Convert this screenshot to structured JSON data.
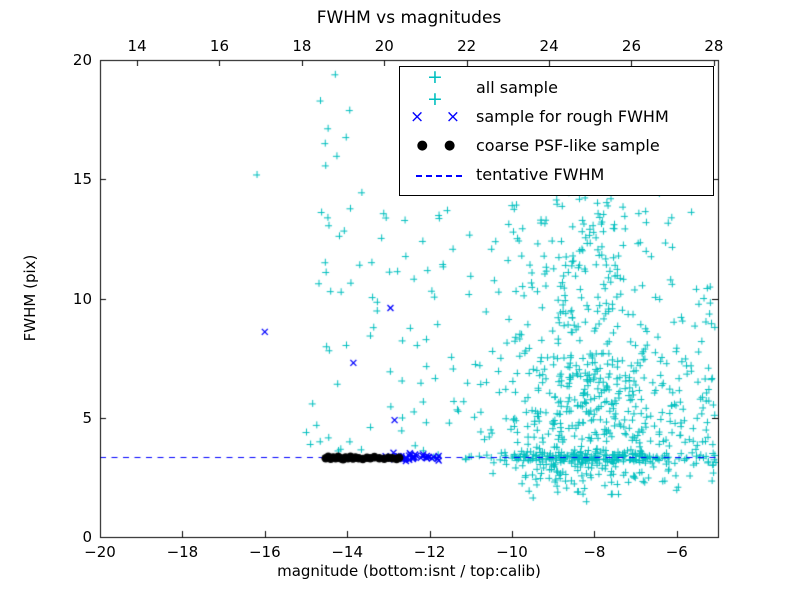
{
  "chart_data": {
    "type": "scatter",
    "title": "FWHM vs magnitudes",
    "xlabel": "magnitude (bottom:isnt / top:calib)",
    "ylabel": "FWHM (pix)",
    "xlim": [
      -20,
      -5
    ],
    "ylim": [
      0,
      20
    ],
    "top_xlim": [
      13.1,
      28.1
    ],
    "grid": false,
    "legend_position": "upper right",
    "x_ticks": [
      {
        "v": -20,
        "label": "−20"
      },
      {
        "v": -18,
        "label": "−18"
      },
      {
        "v": -16,
        "label": "−16"
      },
      {
        "v": -14,
        "label": "−14"
      },
      {
        "v": -12,
        "label": "−12"
      },
      {
        "v": -10,
        "label": "−10"
      },
      {
        "v": -8,
        "label": "−8"
      },
      {
        "v": -6,
        "label": "−6"
      }
    ],
    "top_ticks": [
      {
        "v": 14,
        "label": "14"
      },
      {
        "v": 16,
        "label": "16"
      },
      {
        "v": 18,
        "label": "18"
      },
      {
        "v": 20,
        "label": "20"
      },
      {
        "v": 22,
        "label": "22"
      },
      {
        "v": 24,
        "label": "24"
      },
      {
        "v": 26,
        "label": "26"
      },
      {
        "v": 28,
        "label": "28"
      }
    ],
    "y_ticks": [
      {
        "v": 0,
        "label": "0"
      },
      {
        "v": 5,
        "label": "5"
      },
      {
        "v": 10,
        "label": "10"
      },
      {
        "v": 15,
        "label": "15"
      },
      {
        "v": 20,
        "label": "20"
      }
    ],
    "tentative_fwhm": 3.35,
    "series": [
      {
        "name": "all sample",
        "marker": "plus",
        "color": "#00bfbf",
        "clusters": [
          {
            "type": "uni",
            "n": 26,
            "x": [
              -14.7,
              -13.8
            ],
            "y": [
              3.2,
              19.0
            ]
          },
          {
            "type": "uni",
            "n": 22,
            "x": [
              -13.8,
              -12.6
            ],
            "y": [
              3.5,
              14.5
            ]
          },
          {
            "type": "uni",
            "n": 30,
            "x": [
              -12.6,
              -11.3
            ],
            "y": [
              3.3,
              14.8
            ]
          },
          {
            "type": "uni",
            "n": 25,
            "x": [
              -11.3,
              -9.6
            ],
            "y": [
              4.0,
              14.0
            ]
          },
          {
            "type": "gauss",
            "n": 480,
            "cx": -8.1,
            "sx": 1.1,
            "cy": 5.2,
            "sy": 2.2,
            "clip": [
              -11.6,
              -5.05,
              1.6,
              15.6
            ]
          },
          {
            "type": "gauss",
            "n": 140,
            "cx": -8.3,
            "sx": 1.0,
            "cy": 12.0,
            "sy": 1.8,
            "clip": [
              -11.5,
              -5.05,
              9.0,
              15.8
            ]
          },
          {
            "type": "gauss",
            "n": 200,
            "cx": -8.0,
            "sx": 1.6,
            "cy": 3.35,
            "sy": 0.12,
            "clip": [
              -12.3,
              -5.02,
              3.0,
              3.8
            ]
          },
          {
            "type": "uni",
            "n": 45,
            "x": [
              -9.8,
              -5.05
            ],
            "y": [
              2.1,
              3.15
            ]
          },
          {
            "type": "uni",
            "n": 25,
            "x": [
              -5.6,
              -5.05
            ],
            "y": [
              2.5,
              10.8
            ]
          },
          {
            "type": "uni",
            "n": 30,
            "x": [
              -6.6,
              -5.05
            ],
            "y": [
              3.8,
              14.5
            ]
          }
        ],
        "points": [
          [
            -16.2,
            15.2
          ],
          [
            -14.66,
            18.3
          ],
          [
            -14.3,
            19.4
          ],
          [
            -13.95,
            17.9
          ],
          [
            -15.0,
            4.4
          ],
          [
            -14.85,
            5.6
          ],
          [
            -14.9,
            3.9
          ],
          [
            -14.75,
            4.7
          ],
          [
            -8.2,
            1.5
          ],
          [
            -7.6,
            1.8
          ],
          [
            -8.9,
            1.9
          ],
          [
            -5.2,
            10.5
          ],
          [
            -5.3,
            3.4
          ]
        ]
      },
      {
        "name": "sample for rough FWHM",
        "marker": "x",
        "color": "#0000ff",
        "clusters": [
          {
            "type": "gauss",
            "n": 42,
            "cx": -12.45,
            "sx": 0.5,
            "cy": 3.35,
            "sy": 0.07,
            "clip": [
              -13.45,
              -11.7,
              3.1,
              3.65
            ]
          }
        ],
        "points": [
          [
            -16.0,
            8.6
          ],
          [
            -12.95,
            9.6
          ],
          [
            -13.85,
            7.3
          ],
          [
            -12.85,
            4.9
          ]
        ]
      },
      {
        "name": "coarse PSF-like sample",
        "marker": "dot",
        "color": "#000000",
        "clusters": [],
        "points": [
          [
            -14.52,
            3.3
          ],
          [
            -14.46,
            3.36
          ],
          [
            -14.4,
            3.28
          ],
          [
            -14.34,
            3.33
          ],
          [
            -14.28,
            3.3
          ],
          [
            -14.22,
            3.36
          ],
          [
            -14.16,
            3.3
          ],
          [
            -14.1,
            3.26
          ],
          [
            -14.04,
            3.33
          ],
          [
            -13.98,
            3.3
          ],
          [
            -13.92,
            3.36
          ],
          [
            -13.86,
            3.29
          ],
          [
            -13.8,
            3.33
          ],
          [
            -13.72,
            3.3
          ],
          [
            -13.62,
            3.27
          ],
          [
            -13.52,
            3.32
          ],
          [
            -13.44,
            3.3
          ],
          [
            -13.34,
            3.35
          ],
          [
            -13.22,
            3.3
          ],
          [
            -13.1,
            3.28
          ],
          [
            -13.0,
            3.32
          ],
          [
            -12.9,
            3.3
          ],
          [
            -12.8,
            3.27
          ],
          [
            -12.74,
            3.32
          ]
        ]
      }
    ]
  },
  "legend": {
    "entries": [
      {
        "label": "all sample",
        "marker": "plus",
        "color": "#00bfbf"
      },
      {
        "label": "sample for rough FWHM",
        "marker": "x",
        "color": "#0000ff"
      },
      {
        "label": "coarse PSF-like sample",
        "marker": "dot",
        "color": "#000000"
      },
      {
        "label": "tentative FWHM",
        "marker": "dash",
        "color": "#0000ff"
      }
    ]
  }
}
